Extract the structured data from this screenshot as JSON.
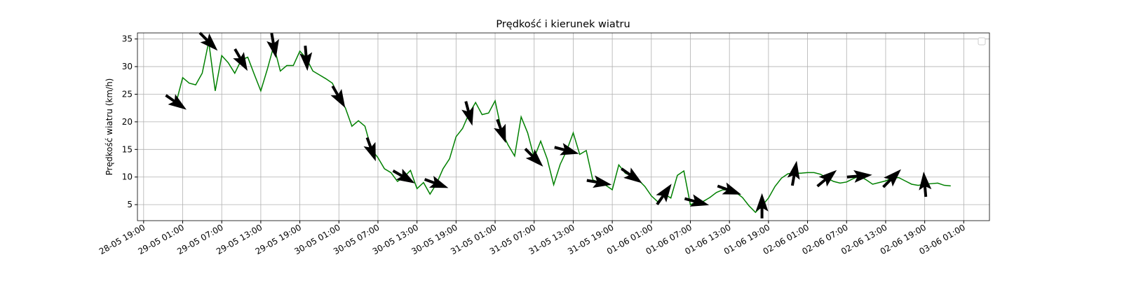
{
  "chart_data": {
    "type": "line-quiver",
    "title": "Prędkość i kierunek wiatru",
    "y_label": "Prędkość wiatru (km/h)",
    "x": [
      "29-05 00:00",
      "29-05 01:00",
      "29-05 02:00",
      "29-05 03:00",
      "29-05 04:00",
      "29-05 05:00",
      "29-05 06:00",
      "29-05 07:00",
      "29-05 08:00",
      "29-05 09:00",
      "29-05 10:00",
      "29-05 11:00",
      "29-05 12:00",
      "29-05 13:00",
      "29-05 14:00",
      "29-05 15:00",
      "29-05 16:00",
      "29-05 17:00",
      "29-05 18:00",
      "29-05 19:00",
      "29-05 20:00",
      "29-05 21:00",
      "29-05 22:00",
      "29-05 23:00",
      "30-05 00:00",
      "30-05 01:00",
      "30-05 02:00",
      "30-05 03:00",
      "30-05 04:00",
      "30-05 05:00",
      "30-05 06:00",
      "30-05 07:00",
      "30-05 08:00",
      "30-05 09:00",
      "30-05 10:00",
      "30-05 11:00",
      "30-05 12:00",
      "30-05 13:00",
      "30-05 14:00",
      "30-05 15:00",
      "30-05 16:00",
      "30-05 17:00",
      "30-05 18:00",
      "30-05 19:00",
      "30-05 20:00",
      "30-05 21:00",
      "30-05 22:00",
      "30-05 23:00",
      "31-05 00:00",
      "31-05 01:00",
      "31-05 02:00",
      "31-05 03:00",
      "31-05 04:00",
      "31-05 05:00",
      "31-05 06:00",
      "31-05 07:00",
      "31-05 08:00",
      "31-05 09:00",
      "31-05 10:00",
      "31-05 11:00",
      "31-05 12:00",
      "31-05 13:00",
      "31-05 14:00",
      "31-05 15:00",
      "31-05 16:00",
      "31-05 17:00",
      "31-05 18:00",
      "31-05 19:00",
      "31-05 20:00",
      "31-05 21:00",
      "31-05 22:00",
      "31-05 23:00",
      "01-06 00:00",
      "01-06 01:00",
      "01-06 02:00",
      "01-06 03:00",
      "01-06 04:00",
      "01-06 05:00",
      "01-06 06:00",
      "01-06 07:00",
      "01-06 08:00",
      "01-06 09:00",
      "01-06 10:00",
      "01-06 11:00",
      "01-06 12:00",
      "01-06 13:00",
      "01-06 14:00",
      "01-06 15:00",
      "01-06 16:00",
      "01-06 17:00",
      "01-06 18:00",
      "01-06 19:00",
      "01-06 20:00",
      "01-06 21:00",
      "01-06 22:00",
      "01-06 23:00",
      "02-06 00:00",
      "02-06 01:00",
      "02-06 02:00",
      "02-06 03:00",
      "02-06 04:00",
      "02-06 05:00",
      "02-06 06:00",
      "02-06 07:00",
      "02-06 08:00",
      "02-06 09:00",
      "02-06 10:00",
      "02-06 11:00",
      "02-06 12:00",
      "02-06 13:00",
      "02-06 14:00",
      "02-06 15:00",
      "02-06 16:00",
      "02-06 17:00",
      "02-06 18:00",
      "02-06 19:00",
      "02-06 20:00",
      "02-06 21:00",
      "02-06 22:00",
      "02-06 23:00"
    ],
    "series": [
      {
        "color": "#008000",
        "values": [
          23.5,
          28,
          27,
          26.7,
          28.8,
          34.5,
          25.6,
          32,
          30.7,
          28.8,
          31.2,
          31.7,
          28.6,
          25.6,
          29.5,
          33.8,
          29.2,
          30.2,
          30.2,
          32.8,
          31.5,
          29.2,
          28.5,
          27.8,
          27,
          24.5,
          22.5,
          19.2,
          20.2,
          19.2,
          15,
          13.5,
          11.5,
          10.8,
          9.2,
          10,
          11.2,
          7.9,
          9,
          6.9,
          8.8,
          11.5,
          13.3,
          17.3,
          18.8,
          21.5,
          23.5,
          21.3,
          21.6,
          23.8,
          18.3,
          15.8,
          13.8,
          20.9,
          18,
          13.5,
          16.5,
          13.3,
          8.6,
          12.3,
          14.8,
          18,
          14.1,
          14.8,
          9.5,
          9,
          8.5,
          7.7,
          12.2,
          10.7,
          10.2,
          9.5,
          8.3,
          6.6,
          5.5,
          6.9,
          6.2,
          10.3,
          11.1,
          5,
          5.5,
          5.6,
          6.3,
          7.2,
          7.7,
          7.6,
          7.2,
          6.3,
          4.8,
          3.6,
          4.8,
          6.2,
          8.3,
          9.8,
          10.6,
          10.7,
          10.7,
          10.8,
          10.8,
          10.5,
          9.8,
          9.2,
          8.9,
          9.1,
          9.7,
          10.2,
          9.5,
          8.7,
          9,
          9.3,
          9.8,
          9.9,
          9.3,
          8.7,
          8.5,
          8.7,
          8.8,
          8.9,
          8.5,
          8.4
        ]
      }
    ],
    "arrows": {
      "color": "#000000",
      "x": [
        "29-05 00:00",
        "29-05 05:00",
        "29-05 10:00",
        "29-05 15:00",
        "29-05 20:00",
        "30-05 01:00",
        "30-05 06:00",
        "30-05 11:00",
        "30-05 16:00",
        "30-05 21:00",
        "31-05 02:00",
        "31-05 07:00",
        "31-05 12:00",
        "31-05 17:00",
        "31-05 22:00",
        "01-06 03:00",
        "01-06 08:00",
        "01-06 13:00",
        "01-06 18:00",
        "01-06 23:00",
        "02-06 04:00",
        "02-06 09:00",
        "02-06 14:00",
        "02-06 19:00"
      ],
      "direction": [
        -35,
        -45,
        -60,
        -80,
        -85,
        -60,
        -70,
        -30,
        -20,
        -75,
        -70,
        -45,
        -15,
        -10,
        -35,
        55,
        -15,
        -20,
        90,
        80,
        40,
        5,
        45,
        95
      ]
    },
    "xlim": [
      "28-05 18:03",
      "03-06 04:57"
    ],
    "xticks": [
      "28-05 19:00",
      "29-05 01:00",
      "29-05 07:00",
      "29-05 13:00",
      "29-05 19:00",
      "30-05 01:00",
      "30-05 07:00",
      "30-05 13:00",
      "30-05 19:00",
      "31-05 01:00",
      "31-05 07:00",
      "31-05 13:00",
      "31-05 19:00",
      "01-06 01:00",
      "01-06 07:00",
      "01-06 13:00",
      "01-06 19:00",
      "02-06 01:00",
      "02-06 07:00",
      "02-06 13:00",
      "02-06 19:00",
      "03-06 01:00"
    ],
    "ylim": [
      2.1,
      36.1
    ],
    "yticks": [
      5,
      10,
      15,
      20,
      25,
      30,
      35
    ],
    "grid": true,
    "legend": "upper right"
  }
}
